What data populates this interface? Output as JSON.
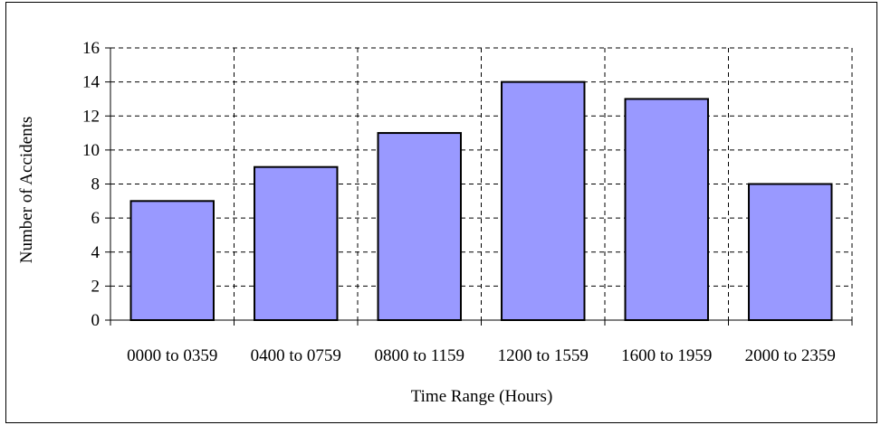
{
  "chart_data": {
    "type": "bar",
    "title": "",
    "xlabel": "Time Range (Hours)",
    "ylabel": "Number of Accidents",
    "categories": [
      "0000 to 0359",
      "0400 to 0759",
      "0800 to 1159",
      "1200 to 1559",
      "1600 to 1959",
      "2000 to 2359"
    ],
    "values": [
      7,
      9,
      11,
      14,
      13,
      8
    ],
    "ylim": [
      0,
      16
    ],
    "yticks": [
      0,
      2,
      4,
      6,
      8,
      10,
      12,
      14,
      16
    ],
    "grid": true,
    "legend": "none",
    "colors": {
      "bar_fill": "#9999ff",
      "bar_stroke": "#000000",
      "grid": "#000000",
      "background": "#ffffff"
    }
  }
}
